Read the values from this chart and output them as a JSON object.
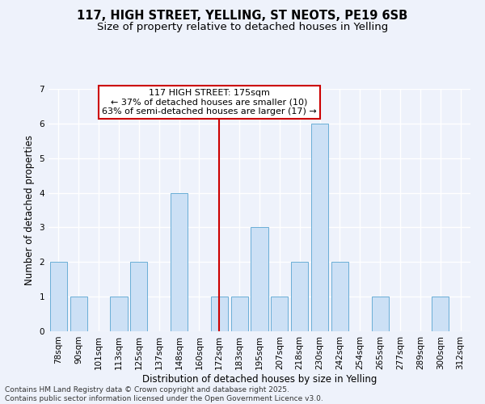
{
  "title_line1": "117, HIGH STREET, YELLING, ST NEOTS, PE19 6SB",
  "title_line2": "Size of property relative to detached houses in Yelling",
  "xlabel": "Distribution of detached houses by size in Yelling",
  "ylabel": "Number of detached properties",
  "categories": [
    "78sqm",
    "90sqm",
    "101sqm",
    "113sqm",
    "125sqm",
    "137sqm",
    "148sqm",
    "160sqm",
    "172sqm",
    "183sqm",
    "195sqm",
    "207sqm",
    "218sqm",
    "230sqm",
    "242sqm",
    "254sqm",
    "265sqm",
    "277sqm",
    "289sqm",
    "300sqm",
    "312sqm"
  ],
  "values": [
    2,
    1,
    0,
    1,
    2,
    0,
    4,
    0,
    1,
    1,
    3,
    1,
    2,
    6,
    2,
    0,
    1,
    0,
    0,
    1,
    0
  ],
  "bar_color": "#cce0f5",
  "bar_edge_color": "#6aaed6",
  "highlight_index": 8,
  "highlight_line_color": "#cc0000",
  "annotation_text": "117 HIGH STREET: 175sqm\n← 37% of detached houses are smaller (10)\n63% of semi-detached houses are larger (17) →",
  "annotation_box_color": "#ffffff",
  "annotation_box_edge_color": "#cc0000",
  "ylim": [
    0,
    7
  ],
  "yticks": [
    0,
    1,
    2,
    3,
    4,
    5,
    6,
    7
  ],
  "background_color": "#eef2fb",
  "grid_color": "#ffffff",
  "footer_line1": "Contains HM Land Registry data © Crown copyright and database right 2025.",
  "footer_line2": "Contains public sector information licensed under the Open Government Licence v3.0.",
  "title_fontsize": 10.5,
  "subtitle_fontsize": 9.5,
  "axis_label_fontsize": 8.5,
  "tick_fontsize": 7.5,
  "annotation_fontsize": 8,
  "footer_fontsize": 6.5
}
